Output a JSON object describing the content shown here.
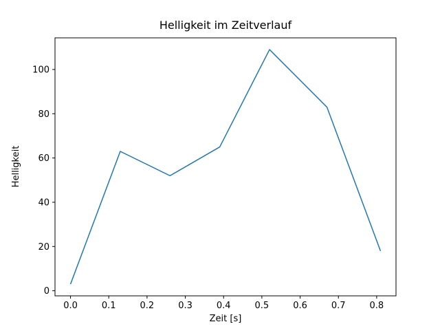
{
  "chart_data": {
    "type": "line",
    "title": "Helligkeit im Zeitverlauf",
    "xlabel": "Zeit [s]",
    "ylabel": "Helligkeit",
    "x": [
      0.0,
      0.13,
      0.26,
      0.39,
      0.52,
      0.67,
      0.81
    ],
    "y": [
      3,
      63,
      52,
      65,
      109,
      83,
      18
    ],
    "xticks": [
      0.0,
      0.1,
      0.2,
      0.3,
      0.4,
      0.5,
      0.6,
      0.7,
      0.8
    ],
    "xtick_labels": [
      "0.0",
      "0.1",
      "0.2",
      "0.3",
      "0.4",
      "0.5",
      "0.6",
      "0.7",
      "0.8"
    ],
    "yticks": [
      0,
      20,
      40,
      60,
      80,
      100
    ],
    "ytick_labels": [
      "0",
      "20",
      "40",
      "60",
      "80",
      "100"
    ],
    "xlim": [
      -0.0405,
      0.8505
    ],
    "ylim": [
      -2.3,
      114.3
    ],
    "line_color": "#1f77b4",
    "spine_color": "#000000",
    "background_color": "#ffffff",
    "grid": false,
    "legend": null
  }
}
